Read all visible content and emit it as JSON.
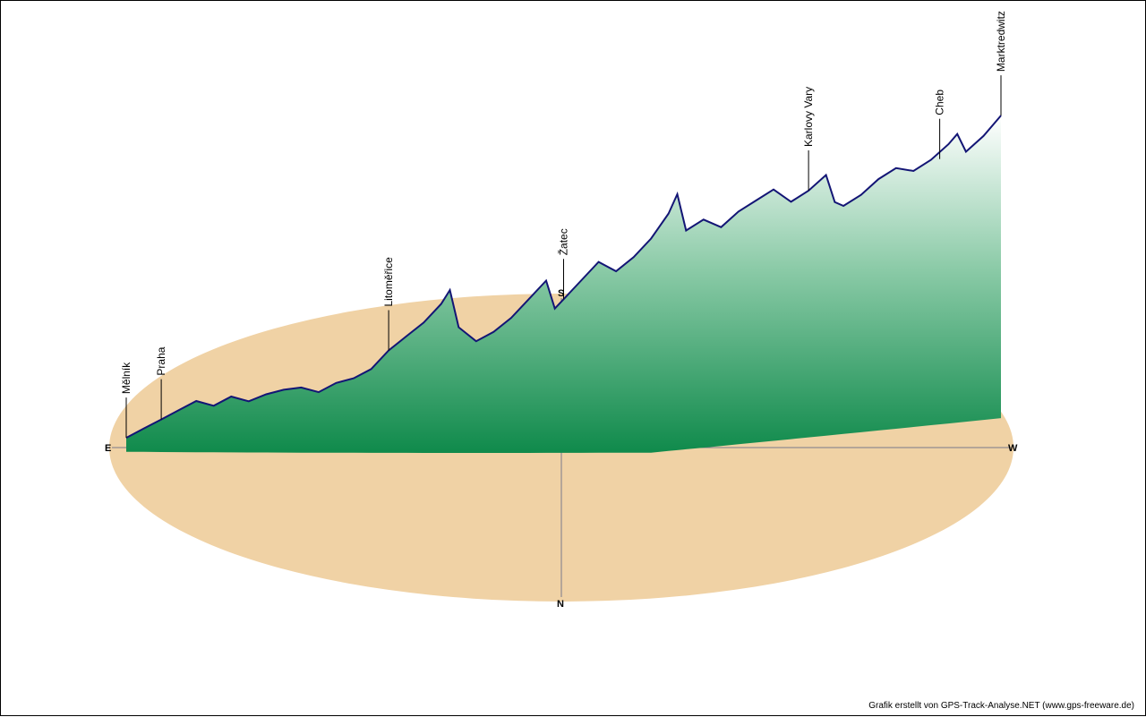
{
  "credit": "Grafik erstellt von GPS-Track-Analyse.NET (www.gps-freeware.de)",
  "compass": {
    "east": "E",
    "west": "W",
    "south": "S",
    "north": "N"
  },
  "colors": {
    "ground": "#f0d2a5",
    "fill_dark": "#0f8a4b",
    "line": "#131575",
    "axis": "#7a7a8a"
  },
  "chart_data": {
    "type": "area",
    "title": "",
    "xlabel": "",
    "ylabel": "",
    "projection": "3d-perspective track profile on compass ellipse",
    "places": [
      "Mělník",
      "Praha",
      "Litoměřice",
      "Žatec",
      "Karlovy Vary",
      "Cheb",
      "Marktredwitz"
    ],
    "profile": [
      [
        0,
        0.06
      ],
      [
        2,
        0.1
      ],
      [
        4,
        0.14
      ],
      [
        6,
        0.18
      ],
      [
        8,
        0.22
      ],
      [
        10,
        0.2
      ],
      [
        12,
        0.24
      ],
      [
        14,
        0.22
      ],
      [
        16,
        0.25
      ],
      [
        18,
        0.27
      ],
      [
        20,
        0.28
      ],
      [
        22,
        0.26
      ],
      [
        24,
        0.3
      ],
      [
        26,
        0.32
      ],
      [
        28,
        0.36
      ],
      [
        30,
        0.44
      ],
      [
        32,
        0.5
      ],
      [
        34,
        0.56
      ],
      [
        36,
        0.64
      ],
      [
        37,
        0.7
      ],
      [
        38,
        0.54
      ],
      [
        40,
        0.48
      ],
      [
        42,
        0.52
      ],
      [
        44,
        0.58
      ],
      [
        46,
        0.66
      ],
      [
        48,
        0.74
      ],
      [
        49,
        0.62
      ],
      [
        50,
        0.66
      ],
      [
        52,
        0.74
      ],
      [
        54,
        0.82
      ],
      [
        56,
        0.78
      ],
      [
        58,
        0.84
      ],
      [
        60,
        0.92
      ],
      [
        62,
        1.02
      ],
      [
        63,
        1.1
      ],
      [
        64,
        0.94
      ],
      [
        66,
        0.98
      ],
      [
        68,
        0.94
      ],
      [
        70,
        1.0
      ],
      [
        72,
        1.04
      ],
      [
        74,
        1.08
      ],
      [
        76,
        1.02
      ],
      [
        78,
        1.06
      ],
      [
        80,
        1.12
      ],
      [
        81,
        1.0
      ],
      [
        82,
        0.98
      ],
      [
        84,
        1.02
      ],
      [
        86,
        1.08
      ],
      [
        88,
        1.12
      ],
      [
        90,
        1.1
      ],
      [
        92,
        1.14
      ],
      [
        94,
        1.2
      ],
      [
        95,
        1.24
      ],
      [
        96,
        1.16
      ],
      [
        98,
        1.22
      ],
      [
        100,
        1.3
      ]
    ]
  }
}
